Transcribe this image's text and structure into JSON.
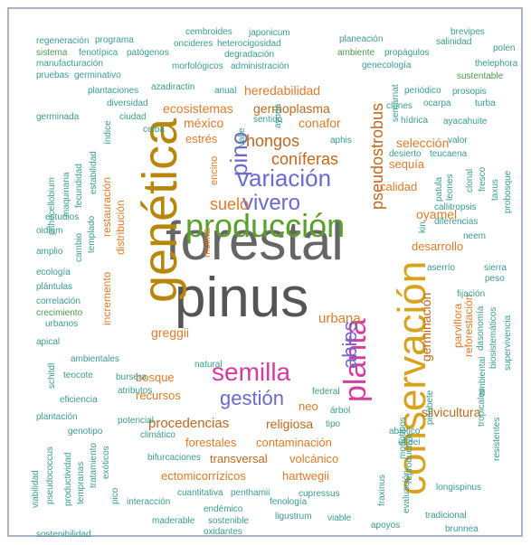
{
  "words": [
    "forestal",
    "pinus",
    "genética",
    "conservación",
    "producción",
    "semilla",
    "planta",
    "variación",
    "vivero",
    "pino",
    "gestión",
    "abies",
    "hongos",
    "coníferas",
    "suelo",
    "pseudostrobus",
    "urbana",
    "procedencias",
    "heredabilidad",
    "ecosistemas",
    "germoplasma",
    "méxico",
    "conafor",
    "estrés",
    "selección",
    "sequía",
    "calidad",
    "oyamel",
    "desarrollo",
    "germinación",
    "parviflora",
    "reforestación",
    "silvicultura",
    "greggii",
    "bosque",
    "recursos",
    "religiosa",
    "neo",
    "forestales",
    "contaminación",
    "transversal",
    "volcánico",
    "ectomicorrízicos",
    "hartwegii",
    "restauración",
    "distribución",
    "incremento",
    "regeneración",
    "programa",
    "cembroides",
    "japonicum",
    "oncideres",
    "heterocigosidad",
    "planeación",
    "salinidad",
    "brevipes",
    "polen",
    "sistema",
    "fenotípica",
    "patógenos",
    "degradación",
    "ambiente",
    "propágulos",
    "thelephora",
    "manufacturación",
    "morfológicos",
    "administración",
    "genecología",
    "sustentable",
    "pruebas",
    "germinativo",
    "azadiractin",
    "plantaciones",
    "anual",
    "periódico",
    "prosopis",
    "diversidad",
    "clones",
    "ocarpa",
    "turba",
    "germinada",
    "ciudad",
    "sentido",
    "hídrica",
    "ayacahuite",
    "ceiba",
    "aphis",
    "valor",
    "desierto",
    "teucaena",
    "ecología",
    "plántulas",
    "correlación",
    "crecimiento",
    "urbanos",
    "apical",
    "amplio",
    "oidium",
    "estudios",
    "eficiencia",
    "plantación",
    "genotipo",
    "potencial",
    "bursera",
    "atributos",
    "natural",
    "federal",
    "tipo",
    "árbol",
    "climático",
    "bifurcaciones",
    "cuantitativa",
    "penthamii",
    "interacción",
    "endémico",
    "cupressus",
    "sostenible",
    "oxidantes",
    "ligustrum",
    "viable",
    "maderable",
    "sostenibilidad",
    "fenología",
    "apoyos",
    "brunnea",
    "tradicional",
    "longispinus",
    "abiótico",
    "uhdei",
    "neem",
    "sierra",
    "peso",
    "aserrío",
    "fijación",
    "diferencias",
    "callitropsis",
    "pithecellobium",
    "maquinaria",
    "fecundidad",
    "estabilidad",
    "índice",
    "semarnat",
    "encino",
    "molina",
    "dasonomía",
    "biosistemáticos",
    "supervivencia",
    "evaluación",
    "ambiental",
    "viabilidad",
    "pseudococcus",
    "productividad",
    "tempranas",
    "tratamiento",
    "exóticos",
    "templado",
    "cambio",
    "patula",
    "clonal",
    "fresco",
    "taxus",
    "probosque",
    "kin",
    "leones",
    "ayuda",
    "valle",
    "pico",
    "reproductiva",
    "pinabete",
    "tropicales",
    "resistentes",
    "morfotipos",
    "fraxinus",
    "schitdl",
    "ambientales",
    "teocote"
  ]
}
